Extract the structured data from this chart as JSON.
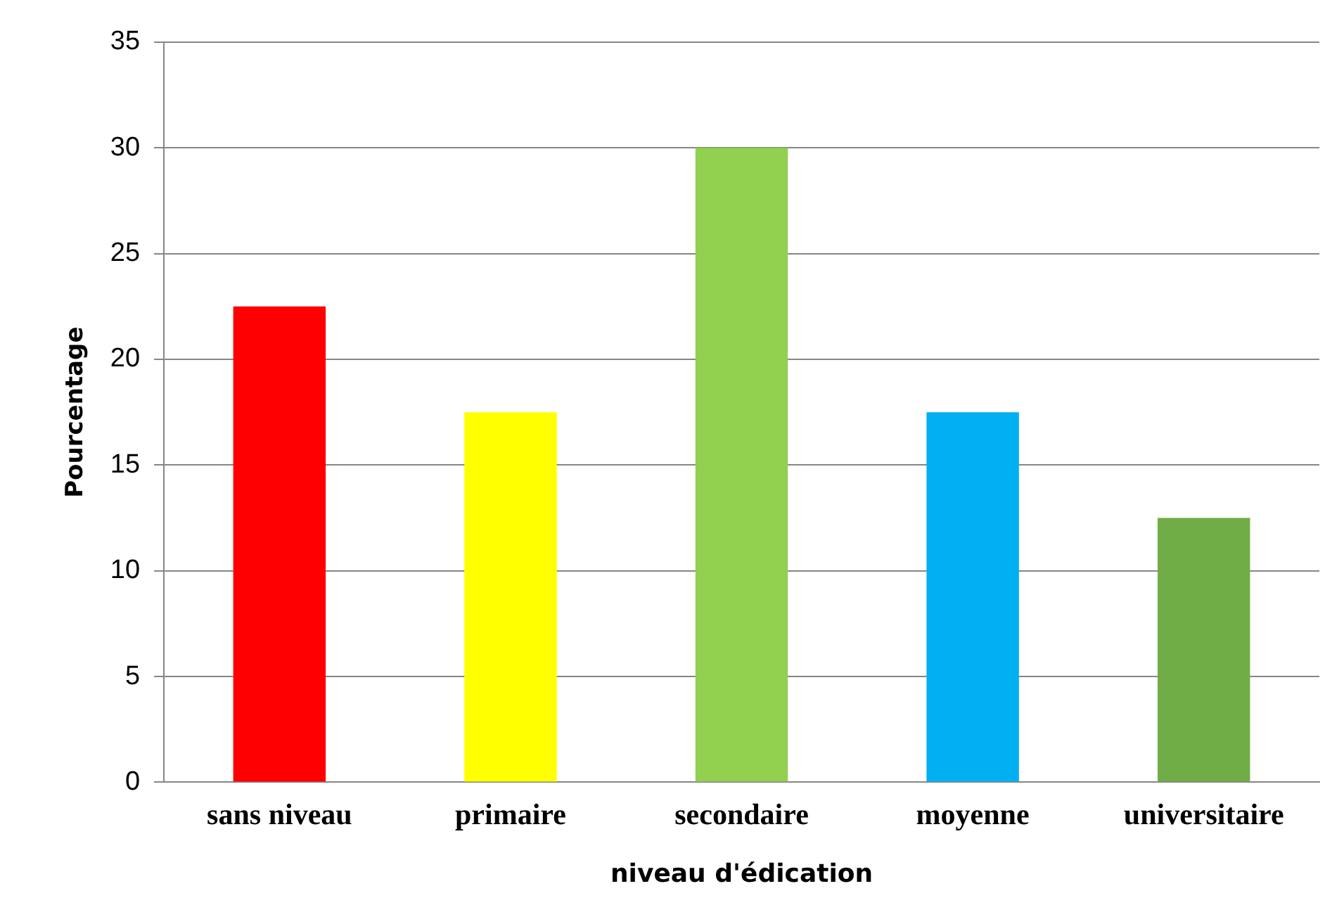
{
  "chart_data": {
    "type": "bar",
    "xlabel": "niveau d'édication",
    "ylabel": "Pourcentage",
    "categories": [
      "sans niveau",
      "primaire",
      "secondaire",
      "moyenne",
      "universitaire"
    ],
    "values": [
      22.5,
      17.5,
      30,
      17.5,
      12.5
    ],
    "colors": [
      "#ff0000",
      "#ffff00",
      "#92d050",
      "#00b0f0",
      "#70ad47"
    ],
    "ylim": [
      0,
      35
    ],
    "yticks": [
      0,
      5,
      10,
      15,
      20,
      25,
      30,
      35
    ],
    "grid": "y",
    "legend": false
  }
}
